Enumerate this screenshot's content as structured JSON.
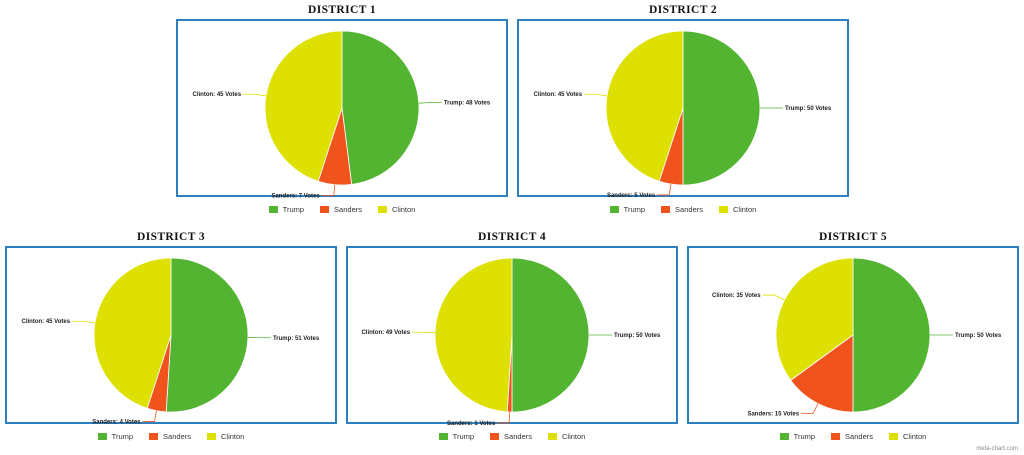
{
  "legend_labels": [
    "Trump",
    "Sanders",
    "Clinton"
  ],
  "colors": {
    "Trump": "#53b432",
    "Sanders": "#f0541c",
    "Clinton": "#dde000",
    "frame": "#2e7fbf"
  },
  "watermark": "meta-chart.com",
  "chart_data": [
    {
      "type": "pie",
      "title": "DISTRICT 1",
      "categories": [
        "Trump",
        "Sanders",
        "Clinton"
      ],
      "values": [
        48,
        7,
        45
      ],
      "labels": [
        "Trump: 48 Votes",
        "Sanders: 7 Votes",
        "Clinton: 45 Votes"
      ],
      "legend": "bottom"
    },
    {
      "type": "pie",
      "title": "DISTRICT 2",
      "categories": [
        "Trump",
        "Sanders",
        "Clinton"
      ],
      "values": [
        50,
        5,
        45
      ],
      "labels": [
        "Trump: 50 Votes",
        "Sanders: 5 Votes",
        "Clinton: 45 Votes"
      ],
      "legend": "bottom"
    },
    {
      "type": "pie",
      "title": "DISTRICT 3",
      "categories": [
        "Trump",
        "Sanders",
        "Clinton"
      ],
      "values": [
        51,
        4,
        45
      ],
      "labels": [
        "Trump: 51 Votes",
        "Sanders: 4 Votes",
        "Clinton: 45 Votes"
      ],
      "legend": "bottom"
    },
    {
      "type": "pie",
      "title": "DISTRICT 4",
      "categories": [
        "Trump",
        "Sanders",
        "Clinton"
      ],
      "values": [
        50,
        1,
        49
      ],
      "labels": [
        "Trump: 50 Votes",
        "Sanders: 1 Votes",
        "Clinton: 49 Votes"
      ],
      "legend": "bottom"
    },
    {
      "type": "pie",
      "title": "DISTRICT 5",
      "categories": [
        "Trump",
        "Sanders",
        "Clinton"
      ],
      "values": [
        50,
        15,
        35
      ],
      "labels": [
        "Trump: 50 Votes",
        "Sanders: 15 Votes",
        "Clinton: 35 Votes"
      ],
      "legend": "bottom"
    }
  ]
}
